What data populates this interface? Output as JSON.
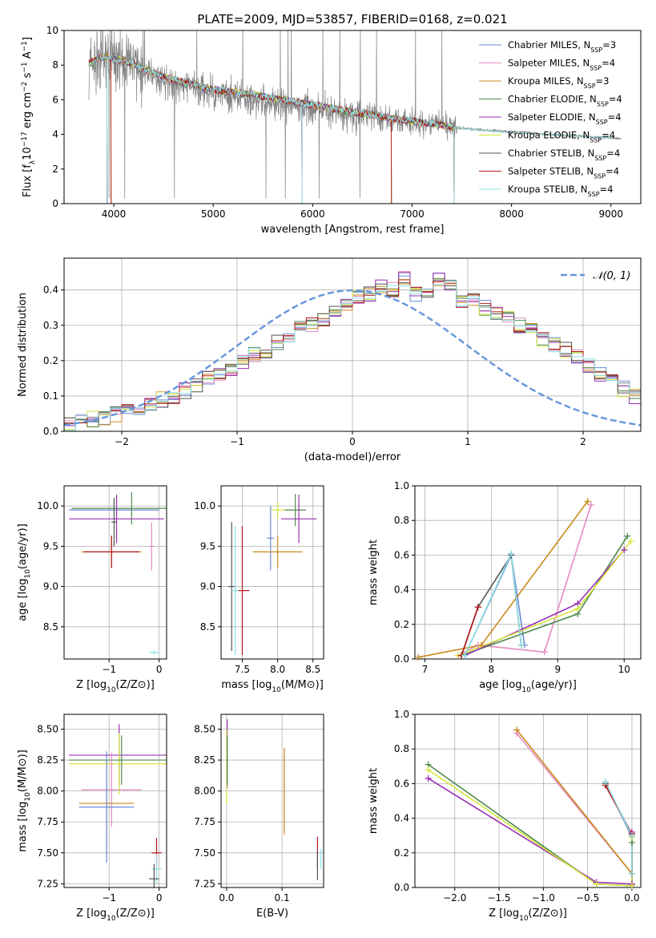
{
  "figure": {
    "title": "PLATE=2009, MJD=53857, FIBERID=0168, z=0.021"
  },
  "series_styles": [
    {
      "name": "Chabrier MILES",
      "nssp": "3",
      "color": "#6b8bd6"
    },
    {
      "name": "Salpeter MILES",
      "nssp": "4",
      "color": "#e58ac2"
    },
    {
      "name": "Kroupa MILES",
      "nssp": "3",
      "color": "#c98a1e"
    },
    {
      "name": "Chabrier ELODIE",
      "nssp": "4",
      "color": "#4f8a4f"
    },
    {
      "name": "Salpeter ELODIE",
      "nssp": "4",
      "color": "#9a2fb3"
    },
    {
      "name": "Kroupa ELODIE",
      "nssp": "4",
      "color": "#d4e63c"
    },
    {
      "name": "Chabrier STELIB",
      "nssp": "4",
      "color": "#555555"
    },
    {
      "name": "Salpeter STELIB",
      "nssp": "4",
      "color": "#b3171b"
    },
    {
      "name": "Kroupa STELIB",
      "nssp": "4",
      "color": "#8ee0e6"
    }
  ],
  "chart_data": [
    {
      "id": "spectrum",
      "type": "line",
      "xlabel": "wavelength [Angstrom, rest frame]",
      "ylabel": "Flux [f_λ10^-17 erg cm^-2 s^-1 A^-1]",
      "xlim": [
        3500,
        9300
      ],
      "ylim": [
        0,
        10
      ],
      "xticks": [
        4000,
        5000,
        6000,
        7000,
        8000,
        9000
      ],
      "yticks": [
        0,
        2,
        4,
        6,
        8,
        10
      ],
      "legend_position": "top-right",
      "data_color": "#808080",
      "data_envelope": {
        "x": [
          3750,
          3900,
          4100,
          4300,
          4500,
          5000,
          5500,
          6000,
          6500,
          7000,
          7200,
          7420,
          7600,
          8000,
          8500,
          9000,
          9100
        ],
        "y": [
          8.2,
          8.4,
          8.3,
          7.6,
          7.1,
          6.4,
          5.9,
          5.5,
          5.1,
          4.7,
          4.55,
          4.4,
          4.3,
          4.15,
          3.95,
          3.8,
          3.75
        ]
      },
      "model": {
        "x": [
          3750,
          3900,
          4000,
          4100,
          4300,
          4500,
          5000,
          5500,
          6000,
          6500,
          7000,
          7420
        ],
        "y": [
          8.1,
          8.5,
          8.3,
          8.3,
          7.8,
          7.3,
          6.6,
          6.2,
          5.7,
          5.2,
          4.75,
          4.45
        ]
      },
      "model_tail": {
        "x": [
          7420,
          7600,
          8000,
          8500,
          9000
        ],
        "y": [
          4.4,
          4.3,
          4.1,
          3.95,
          3.8
        ]
      },
      "model_drops": [
        3930,
        3970,
        5890,
        6790,
        7420
      ]
    },
    {
      "id": "residuals",
      "type": "histogram",
      "xlabel": "(data-model)/error",
      "ylabel": "Normed distribution",
      "xlim": [
        -2.5,
        2.5
      ],
      "ylim": [
        0,
        0.49
      ],
      "xticks": [
        -2,
        -1,
        0,
        1,
        2
      ],
      "yticks": [
        0.0,
        0.1,
        0.2,
        0.3,
        0.4
      ],
      "grid": true,
      "legend_position": "top-right",
      "gauss_label": "𝒩(0, 1)",
      "gauss_color": "#6495dc",
      "bin_edges_start": -2.5,
      "bin_width": 0.1,
      "base_heights": [
        0.022,
        0.027,
        0.035,
        0.04,
        0.048,
        0.055,
        0.065,
        0.075,
        0.09,
        0.1,
        0.115,
        0.13,
        0.15,
        0.165,
        0.18,
        0.2,
        0.215,
        0.23,
        0.25,
        0.265,
        0.29,
        0.3,
        0.32,
        0.34,
        0.36,
        0.38,
        0.39,
        0.41,
        0.4,
        0.43,
        0.39,
        0.4,
        0.43,
        0.41,
        0.37,
        0.37,
        0.35,
        0.33,
        0.32,
        0.3,
        0.29,
        0.26,
        0.245,
        0.23,
        0.21,
        0.185,
        0.16,
        0.14,
        0.12,
        0.1,
        0.085,
        0.075,
        0.065,
        0.052,
        0.045,
        0.037,
        0.03,
        0.026,
        0.022
      ]
    },
    {
      "id": "age-vs-z",
      "type": "errorbar",
      "xlabel": "Z [log10(Z/Z⊙)]",
      "ylabel": "age  [log10(age/yr)]",
      "xlim": [
        -1.9,
        0.15
      ],
      "ylim": [
        8.1,
        10.25
      ],
      "xticks": [
        -1,
        0
      ],
      "yticks": [
        8.5,
        9.0,
        9.5,
        10.0
      ],
      "grid": true,
      "points": [
        {
          "s": 0,
          "x": -0.9,
          "y": 9.95,
          "xerr": 0.9,
          "yerr": 0.1
        },
        {
          "s": 3,
          "x": -0.55,
          "y": 9.97,
          "xerr": 1.2,
          "yerr": 0.2
        },
        {
          "s": 4,
          "x": -0.85,
          "y": 9.84,
          "xerr": 0.95,
          "yerr": 0.3
        },
        {
          "s": 2,
          "x": -0.95,
          "y": 9.43,
          "xerr": 0.6,
          "yerr": 0.2
        },
        {
          "s": 7,
          "x": -0.95,
          "y": 9.43,
          "xerr": 0.55,
          "yerr": 0.2
        },
        {
          "s": 6,
          "x": -0.9,
          "y": 9.8,
          "xerr": 0.05,
          "yerr": 0.3
        },
        {
          "s": 8,
          "x": -0.1,
          "y": 8.18,
          "xerr": 0.1,
          "yerr": 0.03
        },
        {
          "s": 1,
          "x": -0.15,
          "y": 9.5,
          "xerr": 0.05,
          "yerr": 0.3
        }
      ]
    },
    {
      "id": "age-vs-mass",
      "type": "errorbar",
      "xlabel": "mass [log10(M/M⊙)]",
      "ylabel": "",
      "xlim": [
        7.2,
        8.65
      ],
      "ylim": [
        8.1,
        10.25
      ],
      "xticks": [
        7.5,
        8.0,
        8.5
      ],
      "yticks": [
        8.5,
        9.0,
        9.5,
        10.0
      ],
      "grid": true,
      "points": [
        {
          "s": 0,
          "x": 7.9,
          "y": 9.6,
          "xerr": 0.05,
          "yerr": 0.4
        },
        {
          "s": 3,
          "x": 8.25,
          "y": 9.95,
          "xerr": 0.15,
          "yerr": 0.2
        },
        {
          "s": 4,
          "x": 8.3,
          "y": 9.84,
          "xerr": 0.25,
          "yerr": 0.3
        },
        {
          "s": 2,
          "x": 8.0,
          "y": 9.43,
          "xerr": 0.35,
          "yerr": 0.2
        },
        {
          "s": 6,
          "x": 7.35,
          "y": 9.0,
          "xerr": 0.05,
          "yerr": 0.8
        },
        {
          "s": 7,
          "x": 7.5,
          "y": 8.95,
          "xerr": 0.1,
          "yerr": 0.8
        },
        {
          "s": 8,
          "x": 7.4,
          "y": 8.95,
          "xerr": 0.05,
          "yerr": 0.8
        },
        {
          "s": 5,
          "x": 8.0,
          "y": 9.95,
          "xerr": 0.1,
          "yerr": 0.1
        }
      ]
    },
    {
      "id": "mass-weight-vs-age",
      "type": "line",
      "xlabel": "age  [log10(age/yr)]",
      "ylabel": "mass weight",
      "xlim": [
        6.85,
        10.25
      ],
      "ylim": [
        0,
        1.0
      ],
      "xticks": [
        7,
        8,
        9,
        10
      ],
      "yticks": [
        0.0,
        0.2,
        0.4,
        0.6,
        0.8,
        1.0
      ],
      "grid": true,
      "series": [
        {
          "s": 0,
          "x": [
            7.6,
            8.3,
            8.5
          ],
          "y": [
            0.02,
            0.6,
            0.08
          ]
        },
        {
          "s": 1,
          "x": [
            7.5,
            7.8,
            8.8,
            9.5
          ],
          "y": [
            0.02,
            0.08,
            0.04,
            0.89
          ]
        },
        {
          "s": 2,
          "x": [
            6.9,
            7.85,
            9.45
          ],
          "y": [
            0.01,
            0.08,
            0.91
          ]
        },
        {
          "s": 3,
          "x": [
            7.55,
            9.3,
            10.05
          ],
          "y": [
            0.02,
            0.26,
            0.71
          ]
        },
        {
          "s": 4,
          "x": [
            7.6,
            9.3,
            10.0
          ],
          "y": [
            0.02,
            0.32,
            0.63
          ]
        },
        {
          "s": 5,
          "x": [
            7.5,
            9.3,
            10.1
          ],
          "y": [
            0.02,
            0.29,
            0.68
          ]
        },
        {
          "s": 6,
          "x": [
            7.55,
            7.8,
            8.3,
            8.45
          ],
          "y": [
            0.02,
            0.3,
            0.6,
            0.08
          ]
        },
        {
          "s": 7,
          "x": [
            7.55,
            7.8
          ],
          "y": [
            0.02,
            0.3
          ]
        },
        {
          "s": 8,
          "x": [
            7.6,
            8.3,
            8.45
          ],
          "y": [
            0.02,
            0.61,
            0.08
          ]
        }
      ]
    },
    {
      "id": "mass-vs-z",
      "type": "errorbar",
      "xlabel": "Z [log10(Z/Z⊙)]",
      "ylabel": "mass [log10(M/M⊙)]",
      "xlim": [
        -1.9,
        0.15
      ],
      "ylim": [
        7.22,
        8.62
      ],
      "xticks": [
        -1,
        0
      ],
      "yticks": [
        7.25,
        7.5,
        7.75,
        8.0,
        8.25,
        8.5
      ],
      "grid": true,
      "points": [
        {
          "s": 4,
          "x": -0.8,
          "y": 8.29,
          "xerr": 1.0,
          "yerr": 0.25
        },
        {
          "s": 5,
          "x": -0.8,
          "y": 8.22,
          "xerr": 1.0,
          "yerr": 0.25
        },
        {
          "s": 3,
          "x": -0.75,
          "y": 8.25,
          "xerr": 1.05,
          "yerr": 0.2
        },
        {
          "s": 1,
          "x": -0.95,
          "y": 8.01,
          "xerr": 0.6,
          "yerr": 0.3
        },
        {
          "s": 2,
          "x": -1.05,
          "y": 7.9,
          "xerr": 0.55,
          "yerr": 0.35
        },
        {
          "s": 0,
          "x": -1.05,
          "y": 7.87,
          "xerr": 0.55,
          "yerr": 0.45
        },
        {
          "s": 7,
          "x": -0.05,
          "y": 7.5,
          "xerr": 0.1,
          "yerr": 0.12
        },
        {
          "s": 8,
          "x": -0.05,
          "y": 7.37,
          "xerr": 0.1,
          "yerr": 0.12
        },
        {
          "s": 6,
          "x": -0.1,
          "y": 7.29,
          "xerr": 0.1,
          "yerr": 0.12
        }
      ]
    },
    {
      "id": "mass-vs-ebv",
      "type": "errorbar",
      "xlabel": "E(B-V)",
      "ylabel": "",
      "xlim": [
        -0.01,
        0.175
      ],
      "ylim": [
        7.22,
        8.62
      ],
      "xticks": [
        0.0,
        0.1
      ],
      "yticks": [
        7.25,
        7.5,
        7.75,
        8.0,
        8.25,
        8.5
      ],
      "grid": true,
      "points": [
        {
          "s": 4,
          "x": 0.001,
          "y": 8.3,
          "xerr": 0.001,
          "yerr": 0.28
        },
        {
          "s": 5,
          "x": 0.0,
          "y": 8.2,
          "xerr": 0.001,
          "yerr": 0.3
        },
        {
          "s": 3,
          "x": 0.001,
          "y": 8.25,
          "xerr": 0.001,
          "yerr": 0.2
        },
        {
          "s": 1,
          "x": 0.104,
          "y": 8.0,
          "xerr": 0.001,
          "yerr": 0.33
        },
        {
          "s": 2,
          "x": 0.104,
          "y": 8.0,
          "xerr": 0.001,
          "yerr": 0.35
        },
        {
          "s": 7,
          "x": 0.164,
          "y": 7.5,
          "xerr": 0.001,
          "yerr": 0.13
        },
        {
          "s": 6,
          "x": 0.164,
          "y": 7.4,
          "xerr": 0.001,
          "yerr": 0.12
        },
        {
          "s": 8,
          "x": 0.17,
          "y": 7.45,
          "xerr": 0.001,
          "yerr": 0.08
        }
      ]
    },
    {
      "id": "mass-weight-vs-z",
      "type": "line",
      "xlabel": "Z [log10(Z/Z⊙)]",
      "ylabel": "mass weight",
      "xlim": [
        -2.45,
        0.1
      ],
      "ylim": [
        0,
        1.0
      ],
      "xticks": [
        -2.0,
        -1.5,
        -1.0,
        -0.5,
        0.0
      ],
      "yticks": [
        0.0,
        0.2,
        0.4,
        0.6,
        0.8,
        1.0
      ],
      "grid": true,
      "series": [
        {
          "s": 0,
          "x": [
            -0.3,
            0.0,
            0.0
          ],
          "y": [
            0.61,
            0.29,
            0.08
          ]
        },
        {
          "s": 1,
          "x": [
            -1.3,
            0.0,
            0.0
          ],
          "y": [
            0.89,
            0.08,
            0.02
          ]
        },
        {
          "s": 2,
          "x": [
            -1.3,
            0.0,
            0.0
          ],
          "y": [
            0.91,
            0.08,
            0.01
          ]
        },
        {
          "s": 3,
          "x": [
            -2.3,
            -0.4,
            0.0,
            0.0
          ],
          "y": [
            0.71,
            0.02,
            0.01,
            0.26
          ]
        },
        {
          "s": 4,
          "x": [
            -2.3,
            -0.4,
            0.0,
            0.0
          ],
          "y": [
            0.63,
            0.03,
            0.02,
            0.32
          ]
        },
        {
          "s": 5,
          "x": [
            -2.3,
            -0.4,
            0.0,
            0.0
          ],
          "y": [
            0.68,
            0.02,
            0.01,
            0.29
          ]
        },
        {
          "s": 6,
          "x": [
            -0.3,
            0.0,
            0.0
          ],
          "y": [
            0.6,
            0.3,
            0.08
          ]
        },
        {
          "s": 7,
          "x": [
            -0.3,
            0.0,
            0.0
          ],
          "y": [
            0.59,
            0.31,
            0.08
          ]
        },
        {
          "s": 8,
          "x": [
            -0.3,
            0.0,
            0.0
          ],
          "y": [
            0.61,
            0.3,
            0.08
          ]
        }
      ]
    }
  ]
}
